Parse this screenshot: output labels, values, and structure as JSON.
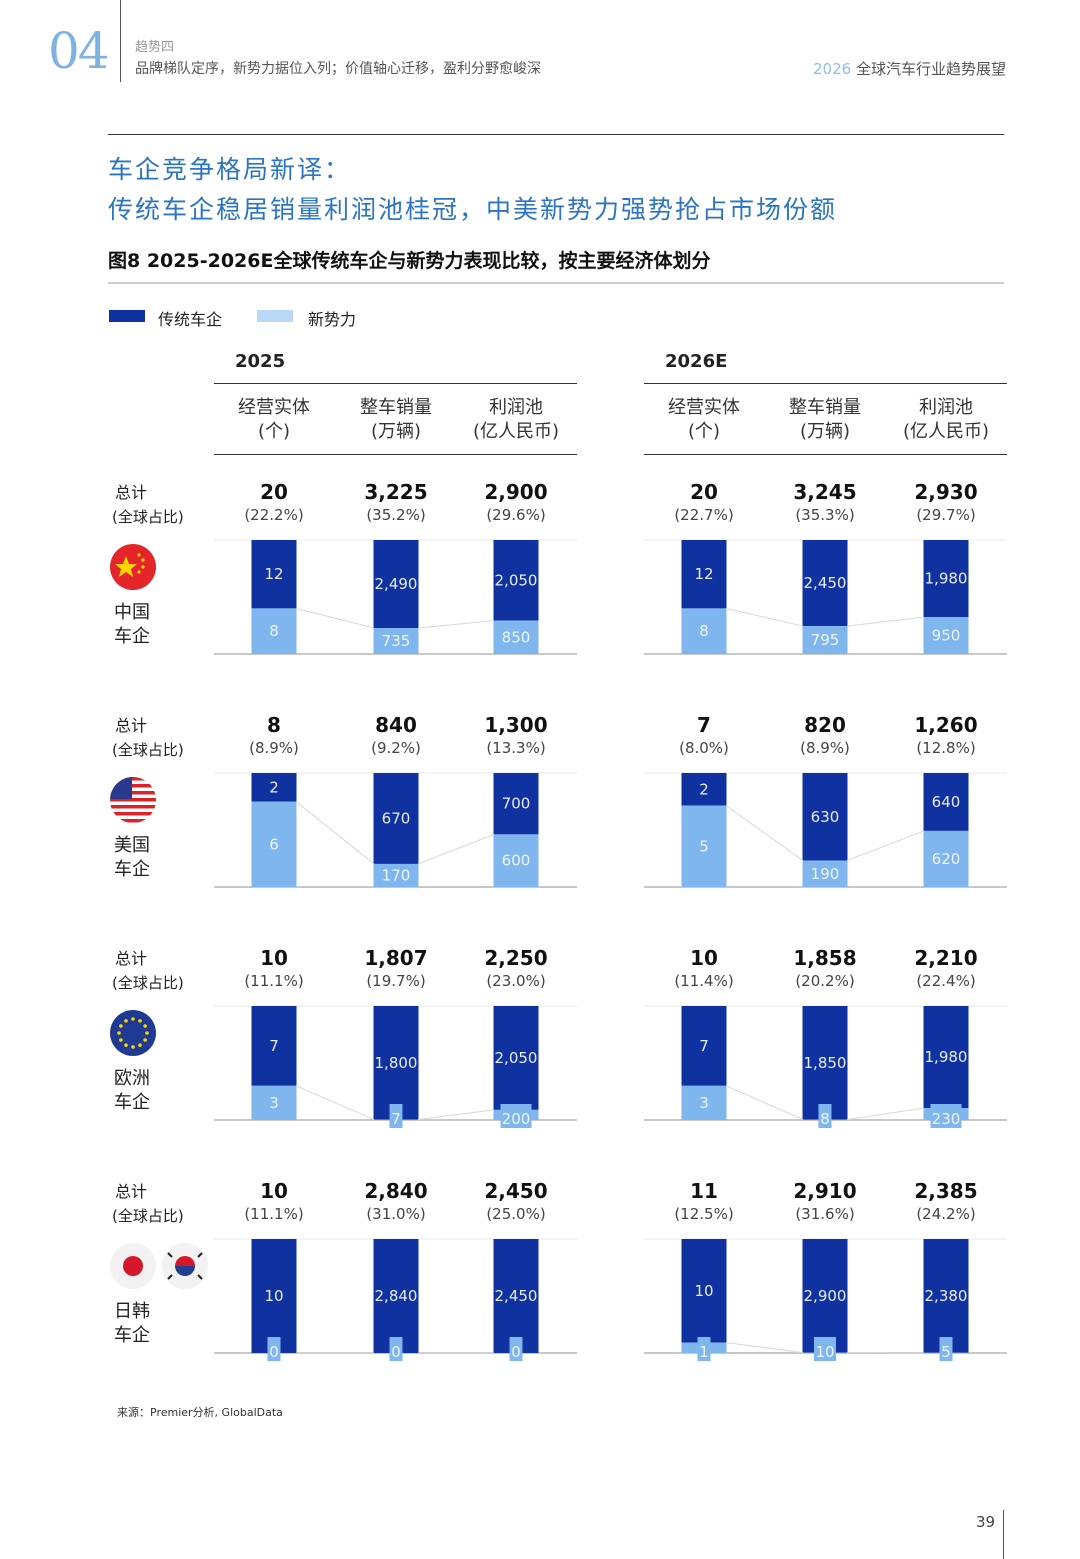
{
  "header": {
    "chapter": "04",
    "section": "趋势四",
    "subtitle": "品牌梯队定序，新势力据位入列；价值轴心迁移，盈利分野愈峻深",
    "report_year": "2026",
    "report_title": "全球汽车行业趋势展望"
  },
  "title": {
    "line1": "车企竞争格局新译：",
    "line2": "传统车企稳居销量利润池桂冠，中美新势力强势抢占市场份额"
  },
  "figure_title": "图8 2025-2026E全球传统车企与新势力表现比较，按主要经济体划分",
  "legend": [
    {
      "label": "传统车企",
      "color": "#0f32a0"
    },
    {
      "label": "新势力",
      "color": "#b9d8f5"
    }
  ],
  "chart_data": {
    "type": "bar",
    "stacked": true,
    "colors": {
      "traditional": "#0f32a0",
      "new": "#7fb6ee"
    },
    "periods": [
      "2025",
      "2026E"
    ],
    "metrics": [
      {
        "label": "经营实体",
        "unit": "(个)"
      },
      {
        "label": "整车销量",
        "unit": "(万辆)"
      },
      {
        "label": "利润池",
        "unit": "(亿人民币)"
      }
    ],
    "series_names": [
      "传统车企",
      "新势力"
    ],
    "regions": [
      {
        "name1": "中国",
        "name2": "车企",
        "flag": "china-flag",
        "total_label": "总计",
        "share_label": "(全球占比)",
        "data": [
          [
            {
              "total": "20",
              "share": "(22.2%)",
              "traditional": 12,
              "new": 8
            },
            {
              "total": "3,225",
              "share": "(35.2%)",
              "traditional": 2490,
              "new": 735
            },
            {
              "total": "2,900",
              "share": "(29.6%)",
              "traditional": 2050,
              "new": 850
            }
          ],
          [
            {
              "total": "20",
              "share": "(22.7%)",
              "traditional": 12,
              "new": 8
            },
            {
              "total": "3,245",
              "share": "(35.3%)",
              "traditional": 2450,
              "new": 795
            },
            {
              "total": "2,930",
              "share": "(29.7%)",
              "traditional": 1980,
              "new": 950
            }
          ]
        ]
      },
      {
        "name1": "美国",
        "name2": "车企",
        "flag": "usa-flag",
        "total_label": "总计",
        "share_label": "(全球占比)",
        "data": [
          [
            {
              "total": "8",
              "share": "(8.9%)",
              "traditional": 2,
              "new": 6
            },
            {
              "total": "840",
              "share": "(9.2%)",
              "traditional": 670,
              "new": 170
            },
            {
              "total": "1,300",
              "share": "(13.3%)",
              "traditional": 700,
              "new": 600
            }
          ],
          [
            {
              "total": "7",
              "share": "(8.0%)",
              "traditional": 2,
              "new": 5
            },
            {
              "total": "820",
              "share": "(8.9%)",
              "traditional": 630,
              "new": 190
            },
            {
              "total": "1,260",
              "share": "(12.8%)",
              "traditional": 640,
              "new": 620
            }
          ]
        ]
      },
      {
        "name1": "欧洲",
        "name2": "车企",
        "flag": "eu-flag",
        "total_label": "总计",
        "share_label": "(全球占比)",
        "data": [
          [
            {
              "total": "10",
              "share": "(11.1%)",
              "traditional": 7,
              "new": 3
            },
            {
              "total": "1,807",
              "share": "(19.7%)",
              "traditional": 1800,
              "new": 7
            },
            {
              "total": "2,250",
              "share": "(23.0%)",
              "traditional": 2050,
              "new": 200
            }
          ],
          [
            {
              "total": "10",
              "share": "(11.4%)",
              "traditional": 7,
              "new": 3
            },
            {
              "total": "1,858",
              "share": "(20.2%)",
              "traditional": 1850,
              "new": 8
            },
            {
              "total": "2,210",
              "share": "(22.4%)",
              "traditional": 1980,
              "new": 230
            }
          ]
        ]
      },
      {
        "name1": "日韩",
        "name2": "车企",
        "flag": "japan-korea-flags",
        "total_label": "总计",
        "share_label": "(全球占比)",
        "data": [
          [
            {
              "total": "10",
              "share": "(11.1%)",
              "traditional": 10,
              "new": 0
            },
            {
              "total": "2,840",
              "share": "(31.0%)",
              "traditional": 2840,
              "new": 0
            },
            {
              "total": "2,450",
              "share": "(25.0%)",
              "traditional": 2450,
              "new": 0
            }
          ],
          [
            {
              "total": "11",
              "share": "(12.5%)",
              "traditional": 10,
              "new": 1
            },
            {
              "total": "2,910",
              "share": "(31.6%)",
              "traditional": 2900,
              "new": 10
            },
            {
              "total": "2,385",
              "share": "(24.2%)",
              "traditional": 2380,
              "new": 5
            }
          ]
        ]
      }
    ]
  },
  "source": "来源：Premier分析, GlobalData",
  "page_number": "39"
}
